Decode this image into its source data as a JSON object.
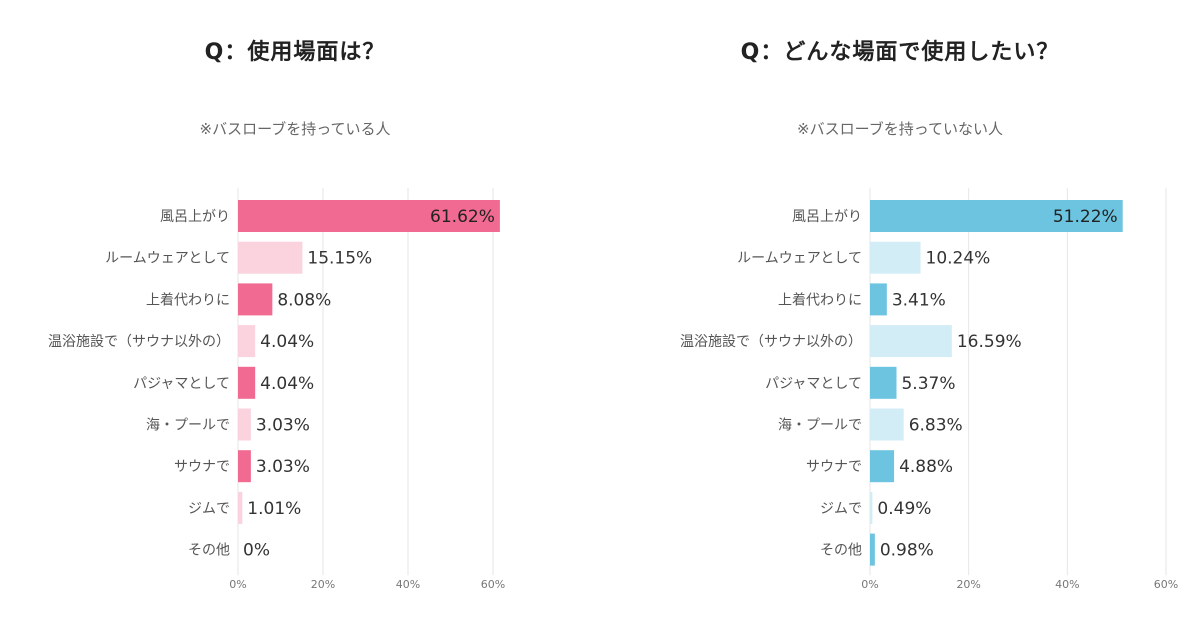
{
  "chart_data": [
    {
      "type": "bar",
      "orientation": "horizontal",
      "title": "Q：使用場面は？",
      "subtitle": "※バスローブを持っている人",
      "categories": [
        "風呂上がり",
        "ルームウェアとして",
        "上着代わりに",
        "温浴施設で（サウナ以外の）",
        "パジャマとして",
        "海・プールで",
        "サウナで",
        "ジムで",
        "その他"
      ],
      "values": [
        61.62,
        15.15,
        8.08,
        4.04,
        4.04,
        3.03,
        3.03,
        1.01,
        0
      ],
      "value_labels": [
        "61.62%",
        "15.15%",
        "8.08%",
        "4.04%",
        "4.04%",
        "3.03%",
        "3.03%",
        "1.01%",
        "0%"
      ],
      "xlim": [
        0,
        60
      ],
      "ticks": [
        0,
        20,
        40,
        60
      ],
      "tick_labels": [
        "0%",
        "20%",
        "40%",
        "60%"
      ],
      "colors": {
        "strong": "#f06a91",
        "light": "#fbd3df"
      },
      "bar_shades": [
        "strong",
        "light",
        "strong",
        "light",
        "strong",
        "light",
        "strong",
        "light",
        "strong"
      ],
      "grid": true
    },
    {
      "type": "bar",
      "orientation": "horizontal",
      "title": "Q：どんな場面で使用したい？",
      "subtitle": "※バスローブを持っていない人",
      "categories": [
        "風呂上がり",
        "ルームウェアとして",
        "上着代わりに",
        "温浴施設で（サウナ以外の）",
        "パジャマとして",
        "海・プールで",
        "サウナで",
        "ジムで",
        "その他"
      ],
      "values": [
        51.22,
        10.24,
        3.41,
        16.59,
        5.37,
        6.83,
        4.88,
        0.49,
        0.98
      ],
      "value_labels": [
        "51.22%",
        "10.24%",
        "3.41%",
        "16.59%",
        "5.37%",
        "6.83%",
        "4.88%",
        "0.49%",
        "0.98%"
      ],
      "xlim": [
        0,
        60
      ],
      "ticks": [
        0,
        20,
        40,
        60
      ],
      "tick_labels": [
        "0%",
        "20%",
        "40%",
        "60%"
      ],
      "colors": {
        "strong": "#6cc4e0",
        "light": "#d3edf7"
      },
      "bar_shades": [
        "strong",
        "light",
        "strong",
        "light",
        "strong",
        "light",
        "strong",
        "light",
        "strong"
      ],
      "grid": true
    }
  ]
}
